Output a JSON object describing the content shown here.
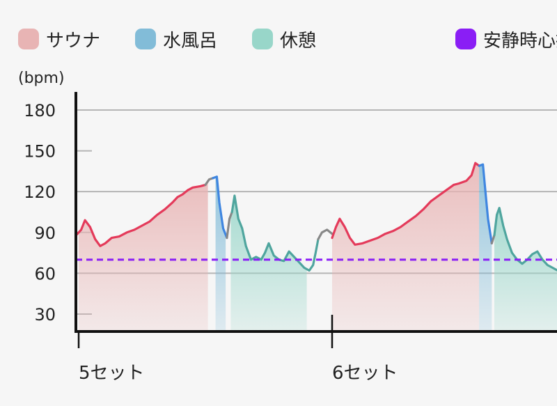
{
  "chart_data": {
    "type": "line",
    "ylabel": "(bpm)",
    "ylim": [
      15,
      185
    ],
    "yticks": [
      30,
      60,
      90,
      120,
      150,
      180
    ],
    "x_range": [
      0,
      20
    ],
    "grid": true,
    "legend_position": "top",
    "legend": [
      {
        "key": "sauna",
        "label": "サウナ",
        "color": "#e8b4b4"
      },
      {
        "key": "cold",
        "label": "水風呂",
        "color": "#82bcd8"
      },
      {
        "key": "rest",
        "label": "休憩",
        "color": "#98d6c9"
      },
      {
        "key": "resting",
        "label": "安静時心拍",
        "color": "#8a1ef5"
      }
    ],
    "sets": [
      {
        "label": "5セット",
        "x": 0
      },
      {
        "label": "6セット",
        "x": 10
      }
    ],
    "resting_hr": 70,
    "phases": [
      {
        "type": "sauna",
        "start": 0.0,
        "end": 5.1
      },
      {
        "type": "cold",
        "start": 5.4,
        "end": 5.8
      },
      {
        "type": "rest",
        "start": 6.0,
        "end": 9.0
      },
      {
        "type": "sauna",
        "start": 10.0,
        "end": 15.8
      },
      {
        "type": "cold",
        "start": 15.8,
        "end": 16.3
      },
      {
        "type": "rest",
        "start": 16.4,
        "end": 20.0
      }
    ],
    "series": [
      {
        "type": "sauna",
        "color": "#e43a5a",
        "points": [
          [
            -0.1,
            88
          ],
          [
            0.1,
            92
          ],
          [
            0.25,
            99
          ],
          [
            0.45,
            94
          ],
          [
            0.65,
            85
          ],
          [
            0.85,
            80
          ],
          [
            1.05,
            82
          ],
          [
            1.3,
            86
          ],
          [
            1.6,
            87
          ],
          [
            1.9,
            90
          ],
          [
            2.2,
            92
          ],
          [
            2.5,
            95
          ],
          [
            2.8,
            98
          ],
          [
            3.1,
            103
          ],
          [
            3.4,
            107
          ],
          [
            3.7,
            112
          ],
          [
            3.9,
            116
          ],
          [
            4.1,
            118
          ],
          [
            4.3,
            121
          ],
          [
            4.5,
            123
          ],
          [
            4.8,
            124
          ],
          [
            5.0,
            125
          ]
        ]
      },
      {
        "type": "transition",
        "color": "#888888",
        "points": [
          [
            5.0,
            125
          ],
          [
            5.15,
            129
          ],
          [
            5.3,
            130
          ]
        ]
      },
      {
        "type": "cold",
        "color": "#3f86e0",
        "points": [
          [
            5.3,
            130
          ],
          [
            5.45,
            131
          ],
          [
            5.55,
            112
          ],
          [
            5.7,
            93
          ],
          [
            5.85,
            86
          ]
        ]
      },
      {
        "type": "transition",
        "color": "#888888",
        "points": [
          [
            5.85,
            86
          ],
          [
            5.95,
            100
          ],
          [
            6.05,
            105
          ]
        ]
      },
      {
        "type": "rest",
        "color": "#4fa59e",
        "points": [
          [
            6.05,
            105
          ],
          [
            6.15,
            117
          ],
          [
            6.3,
            100
          ],
          [
            6.45,
            93
          ],
          [
            6.6,
            80
          ],
          [
            6.8,
            70
          ],
          [
            7.0,
            72
          ],
          [
            7.2,
            70
          ],
          [
            7.35,
            75
          ],
          [
            7.5,
            82
          ],
          [
            7.7,
            73
          ],
          [
            7.9,
            70
          ],
          [
            8.1,
            69
          ],
          [
            8.3,
            76
          ],
          [
            8.5,
            72
          ],
          [
            8.7,
            68
          ],
          [
            8.9,
            64
          ],
          [
            9.1,
            62
          ],
          [
            9.25,
            66
          ],
          [
            9.35,
            75
          ],
          [
            9.45,
            85
          ]
        ]
      },
      {
        "type": "transition",
        "color": "#888888",
        "points": [
          [
            9.45,
            85
          ],
          [
            9.6,
            90
          ],
          [
            9.8,
            92
          ],
          [
            10.0,
            89
          ]
        ]
      },
      {
        "type": "sauna",
        "color": "#e43a5a",
        "points": [
          [
            10.0,
            86
          ],
          [
            10.15,
            94
          ],
          [
            10.3,
            100
          ],
          [
            10.5,
            94
          ],
          [
            10.7,
            86
          ],
          [
            10.9,
            81
          ],
          [
            11.2,
            82
          ],
          [
            11.5,
            84
          ],
          [
            11.8,
            86
          ],
          [
            12.1,
            89
          ],
          [
            12.4,
            91
          ],
          [
            12.7,
            94
          ],
          [
            13.0,
            98
          ],
          [
            13.3,
            102
          ],
          [
            13.6,
            107
          ],
          [
            13.9,
            113
          ],
          [
            14.2,
            117
          ],
          [
            14.5,
            121
          ],
          [
            14.8,
            125
          ],
          [
            15.0,
            126
          ],
          [
            15.3,
            128
          ],
          [
            15.5,
            132
          ],
          [
            15.65,
            141
          ],
          [
            15.8,
            139
          ]
        ]
      },
      {
        "type": "cold",
        "color": "#3f86e0",
        "points": [
          [
            15.8,
            139
          ],
          [
            15.95,
            140
          ],
          [
            16.05,
            120
          ],
          [
            16.15,
            100
          ],
          [
            16.3,
            82
          ]
        ]
      },
      {
        "type": "transition",
        "color": "#888888",
        "points": [
          [
            16.3,
            82
          ],
          [
            16.4,
            88
          ]
        ]
      },
      {
        "type": "rest",
        "color": "#4fa59e",
        "points": [
          [
            16.4,
            88
          ],
          [
            16.5,
            103
          ],
          [
            16.6,
            108
          ],
          [
            16.75,
            95
          ],
          [
            16.9,
            85
          ],
          [
            17.1,
            75
          ],
          [
            17.3,
            70
          ],
          [
            17.5,
            67
          ],
          [
            17.7,
            70
          ],
          [
            17.9,
            74
          ],
          [
            18.1,
            76
          ],
          [
            18.3,
            70
          ],
          [
            18.5,
            66
          ],
          [
            18.7,
            64
          ],
          [
            18.9,
            62
          ],
          [
            19.1,
            60
          ],
          [
            19.3,
            61
          ],
          [
            19.5,
            60
          ],
          [
            19.7,
            62
          ],
          [
            19.9,
            64
          ],
          [
            20.1,
            65
          ]
        ]
      }
    ]
  }
}
